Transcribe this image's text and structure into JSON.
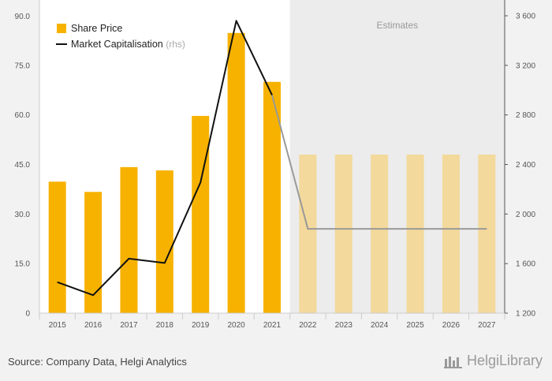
{
  "chart_data": {
    "type": "bar",
    "categories": [
      "2015",
      "2016",
      "2017",
      "2018",
      "2019",
      "2020",
      "2021",
      "2022",
      "2023",
      "2024",
      "2025",
      "2026",
      "2027"
    ],
    "estimate_start_index": 7,
    "estimates_label": "Estimates",
    "series": [
      {
        "name": "Share Price",
        "type": "bar",
        "axis": "left",
        "values": [
          39.8,
          36.7,
          44.2,
          43.2,
          59.7,
          84.8,
          70.0,
          48.0,
          48.0,
          48.0,
          48.0,
          48.0,
          48.0
        ],
        "color": "#f7b200",
        "estimate_color": "#f3d99b"
      },
      {
        "name": "Market Capitalisation",
        "name_suffix": "(rhs)",
        "type": "line",
        "axis": "right",
        "values": [
          1450,
          1345,
          1640,
          1605,
          2255,
          3560,
          2960,
          1880,
          1880,
          1880,
          1880,
          1880,
          1880
        ],
        "color": "#111111",
        "estimate_color": "#999999"
      }
    ],
    "y_left": {
      "ticks": [
        "0",
        "15.0",
        "30.0",
        "45.0",
        "60.0",
        "75.0",
        "90.0"
      ],
      "range": [
        0,
        90
      ]
    },
    "y_right": {
      "ticks": [
        "1 200",
        "1 600",
        "2 000",
        "2 400",
        "2 800",
        "3 200",
        "3 600"
      ],
      "range": [
        1200,
        3600
      ]
    },
    "grid": false,
    "legend_position": "top-left"
  },
  "footer": {
    "source": "Source: Company Data, Helgi Analytics",
    "brand": "HelgiLibrary"
  },
  "colors": {
    "background": "#f2f2f2",
    "plot": "#ffffff",
    "estimate_band": "#ececec"
  }
}
